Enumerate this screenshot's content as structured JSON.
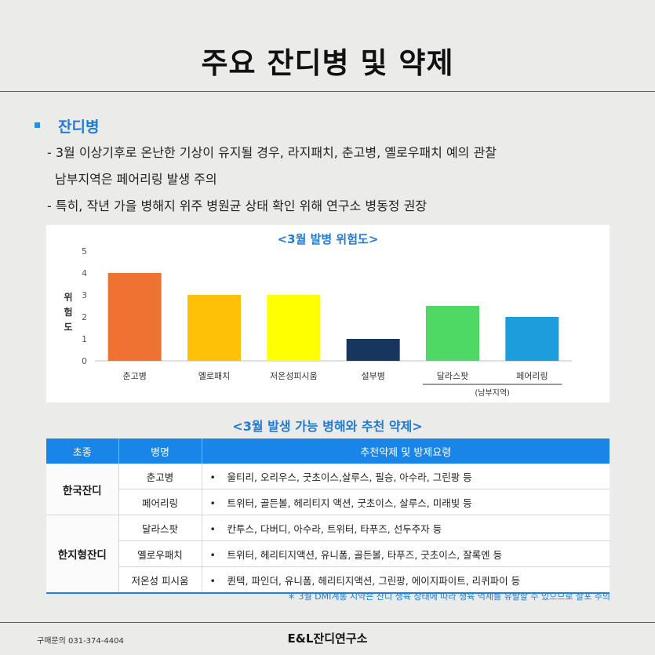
{
  "title": "주요 잔디병 및 약제",
  "section": {
    "title": "잔디병",
    "lines": [
      "- 3월 이상기후로 온난한 기상이 유지될 경우, 라지패치, 춘고병, 옐로우패치 예의 관찰",
      "남부지역은 페어리링 발생 주의",
      "- 특히, 작년 가을 병해지 위주 병원균 상태 확인 위해 연구소 병동정 권장"
    ]
  },
  "chart_data": {
    "type": "bar",
    "title": "<3월 발병 위험도>",
    "ylabel": "위험도",
    "xlabel": "",
    "ylim": [
      0,
      5
    ],
    "yticks": [
      "0",
      "1",
      "2",
      "3",
      "4",
      "5"
    ],
    "categories": [
      "춘고병",
      "옐로패치",
      "저온성피시움",
      "설부병",
      "달라스팟",
      "페어리링"
    ],
    "values": [
      4,
      3,
      3,
      1,
      2.5,
      2
    ],
    "colors": [
      "#ee7232",
      "#ffc107",
      "#ffff00",
      "#17365d",
      "#4dd964",
      "#1d9ddb"
    ],
    "group_note": "(남부지역)",
    "grid": false
  },
  "table": {
    "title": "<3월 발생 가능 병해와 추천 약제>",
    "headers": [
      "초종",
      "병명",
      "추천약제 및 방제요령"
    ],
    "groups": [
      {
        "category": "한국잔디",
        "rows": [
          {
            "disease": "춘고병",
            "rec": "울티리, 오리우스, 굿초이스,살루스, 필승, 아수라, 그린팡 등"
          },
          {
            "disease": "페어리링",
            "rec": "트위터, 골든볼, 헤리티지 액션, 굿초이스, 살루스, 미래빛 등"
          }
        ]
      },
      {
        "category": "한지형잔디",
        "rows": [
          {
            "disease": "달라스팟",
            "rec": "칸투스, 다버디, 아수라, 트위터, 타푸즈, 선두주자 등"
          },
          {
            "disease": "옐로우패치",
            "rec": "트위터, 헤리티지액션, 유니폼, 골든볼, 타푸즈, 굿초이스, 잘록엔 등"
          },
          {
            "disease": "저온성 피시움",
            "rec": "퀸텍, 파인더, 유니폼, 헤리티지액션, 그린팡, 에이지파이트, 리퀴파이 등"
          }
        ]
      }
    ],
    "bullet": "•",
    "footnote": "＊ 3월 DMI계통 시약은 잔디 생육 상태에 따라 생육 억제를 유발할 수 있으므로 살포 주의"
  },
  "footer": {
    "contact": "구매문의 031-374-4404",
    "brand": "E&L잔디연구소"
  },
  "colors": {
    "accent": "#1a85e8",
    "section_blue": "#1f7bd6",
    "background": "#ebebea"
  }
}
